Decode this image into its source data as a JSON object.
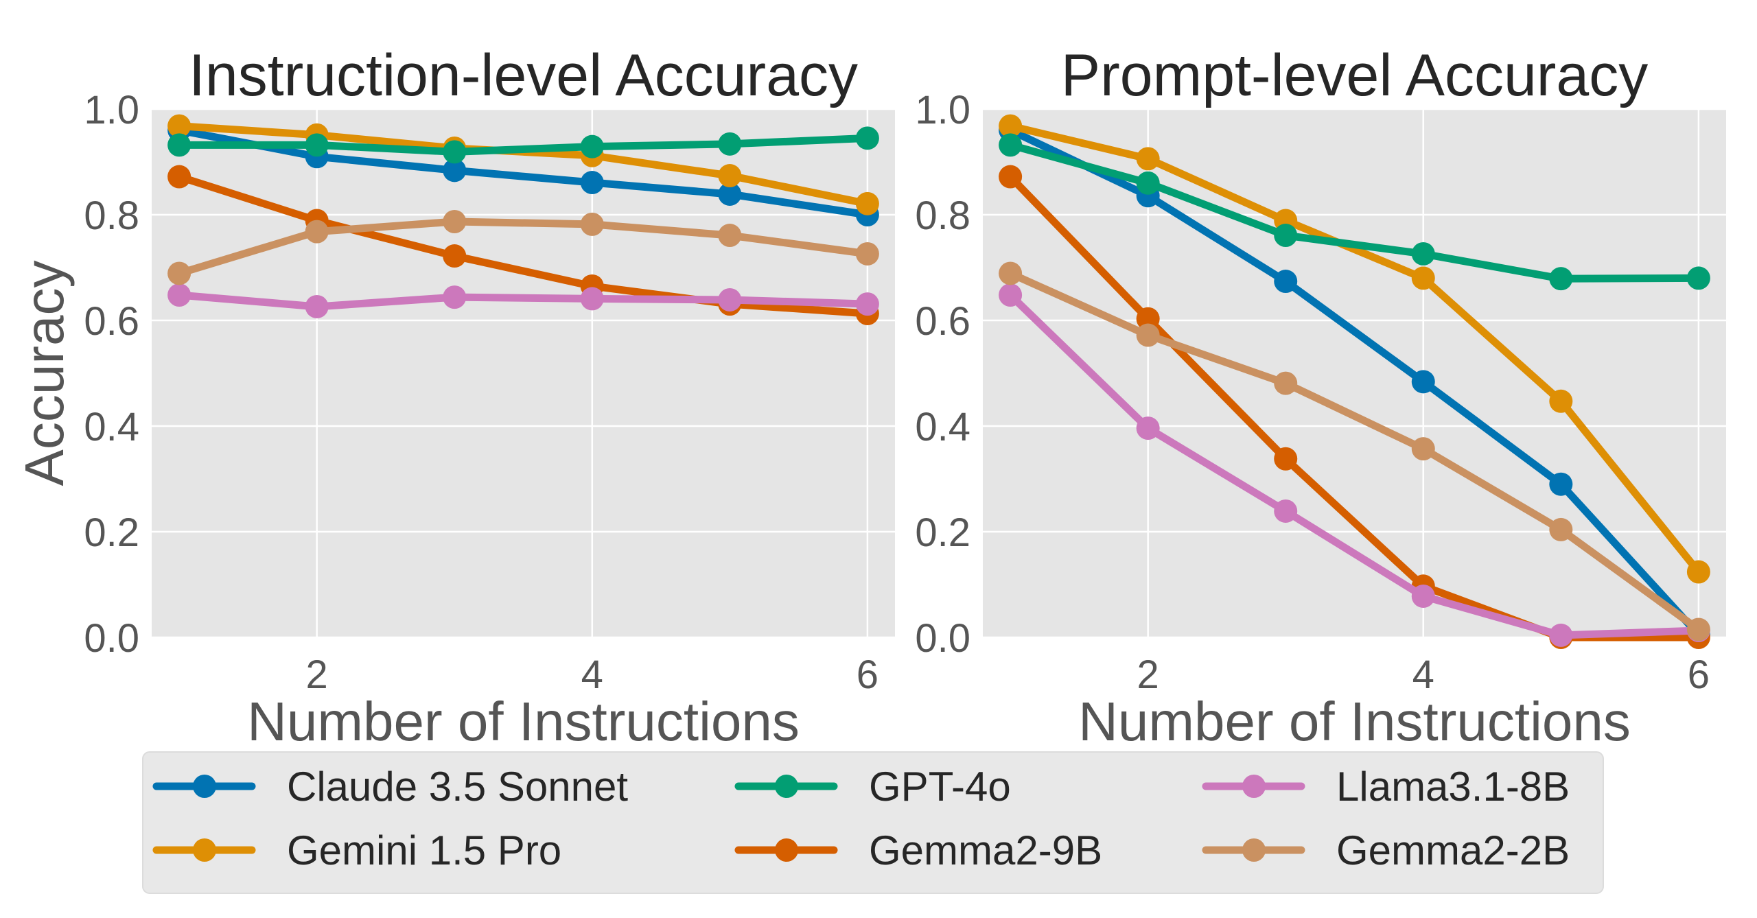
{
  "chart_data": [
    {
      "type": "line",
      "title": "Instruction-level Accuracy",
      "xlabel": "Number of Instructions",
      "ylabel": "Accuracy",
      "x": [
        1,
        2,
        3,
        4,
        5,
        6
      ],
      "xlim": [
        0.8,
        6.2
      ],
      "ylim": [
        0.0,
        1.0
      ],
      "xticks": [
        2,
        4,
        6
      ],
      "xtick_labels": [
        "2",
        "4",
        "6"
      ],
      "yticks": [
        0.0,
        0.2,
        0.4,
        0.6,
        0.8,
        1.0
      ],
      "ytick_labels": [
        "0.0",
        "0.2",
        "0.4",
        "0.6",
        "0.8",
        "1.0"
      ],
      "grid": true,
      "series": [
        {
          "name": "Claude 3.5 Sonnet",
          "color": "#0173b2",
          "values": [
            0.96,
            0.91,
            0.884,
            0.861,
            0.839,
            0.8
          ]
        },
        {
          "name": "Gemini 1.5 Pro",
          "color": "#de8f05",
          "values": [
            0.968,
            0.951,
            0.926,
            0.912,
            0.874,
            0.821
          ]
        },
        {
          "name": "GPT-4o",
          "color": "#029e73",
          "values": [
            0.932,
            0.932,
            0.919,
            0.929,
            0.934,
            0.945
          ]
        },
        {
          "name": "Gemma2-9B",
          "color": "#d55e00",
          "values": [
            0.872,
            0.789,
            0.722,
            0.665,
            0.631,
            0.613
          ]
        },
        {
          "name": "Llama3.1-8B",
          "color": "#cc78bc",
          "values": [
            0.648,
            0.626,
            0.644,
            0.641,
            0.639,
            0.631
          ]
        },
        {
          "name": "Gemma2-2B",
          "color": "#ca9161",
          "values": [
            0.689,
            0.768,
            0.787,
            0.782,
            0.761,
            0.726
          ]
        }
      ]
    },
    {
      "type": "line",
      "title": "Prompt-level Accuracy",
      "xlabel": "Number of Instructions",
      "ylabel": "",
      "x": [
        1,
        2,
        3,
        4,
        5,
        6
      ],
      "xlim": [
        0.8,
        6.2
      ],
      "ylim": [
        0.0,
        1.0
      ],
      "xticks": [
        2,
        4,
        6
      ],
      "xtick_labels": [
        "2",
        "4",
        "6"
      ],
      "yticks": [
        0.0,
        0.2,
        0.4,
        0.6,
        0.8,
        1.0
      ],
      "ytick_labels": [
        "0.0",
        "0.2",
        "0.4",
        "0.6",
        "0.8",
        "1.0"
      ],
      "grid": true,
      "series": [
        {
          "name": "Claude 3.5 Sonnet",
          "color": "#0173b2",
          "values": [
            0.96,
            0.836,
            0.674,
            0.484,
            0.29,
            0.005
          ]
        },
        {
          "name": "Gemini 1.5 Pro",
          "color": "#de8f05",
          "values": [
            0.968,
            0.906,
            0.789,
            0.68,
            0.447,
            0.124
          ]
        },
        {
          "name": "GPT-4o",
          "color": "#029e73",
          "values": [
            0.932,
            0.86,
            0.761,
            0.726,
            0.679,
            0.68
          ]
        },
        {
          "name": "Gemma2-9B",
          "color": "#d55e00",
          "values": [
            0.872,
            0.603,
            0.338,
            0.097,
            0.0,
            0.0
          ]
        },
        {
          "name": "Llama3.1-8B",
          "color": "#cc78bc",
          "values": [
            0.648,
            0.396,
            0.239,
            0.078,
            0.004,
            0.013
          ]
        },
        {
          "name": "Gemma2-2B",
          "color": "#ca9161",
          "values": [
            0.689,
            0.572,
            0.481,
            0.357,
            0.204,
            0.015
          ]
        }
      ]
    }
  ],
  "legend": {
    "placement": "bottom-center",
    "columns": 3,
    "entries": [
      {
        "label": "Claude 3.5 Sonnet",
        "color": "#0173b2"
      },
      {
        "label": "Gemini 1.5 Pro",
        "color": "#de8f05"
      },
      {
        "label": "GPT-4o",
        "color": "#029e73"
      },
      {
        "label": "Gemma2-9B",
        "color": "#d55e00"
      },
      {
        "label": "Llama3.1-8B",
        "color": "#cc78bc"
      },
      {
        "label": "Gemma2-2B",
        "color": "#ca9161"
      }
    ]
  },
  "style": {
    "axes_background": "#e5e5e5",
    "grid_color": "#ffffff",
    "legend_background": "#e8e8e8",
    "legend_border": "#dcdcdc"
  }
}
